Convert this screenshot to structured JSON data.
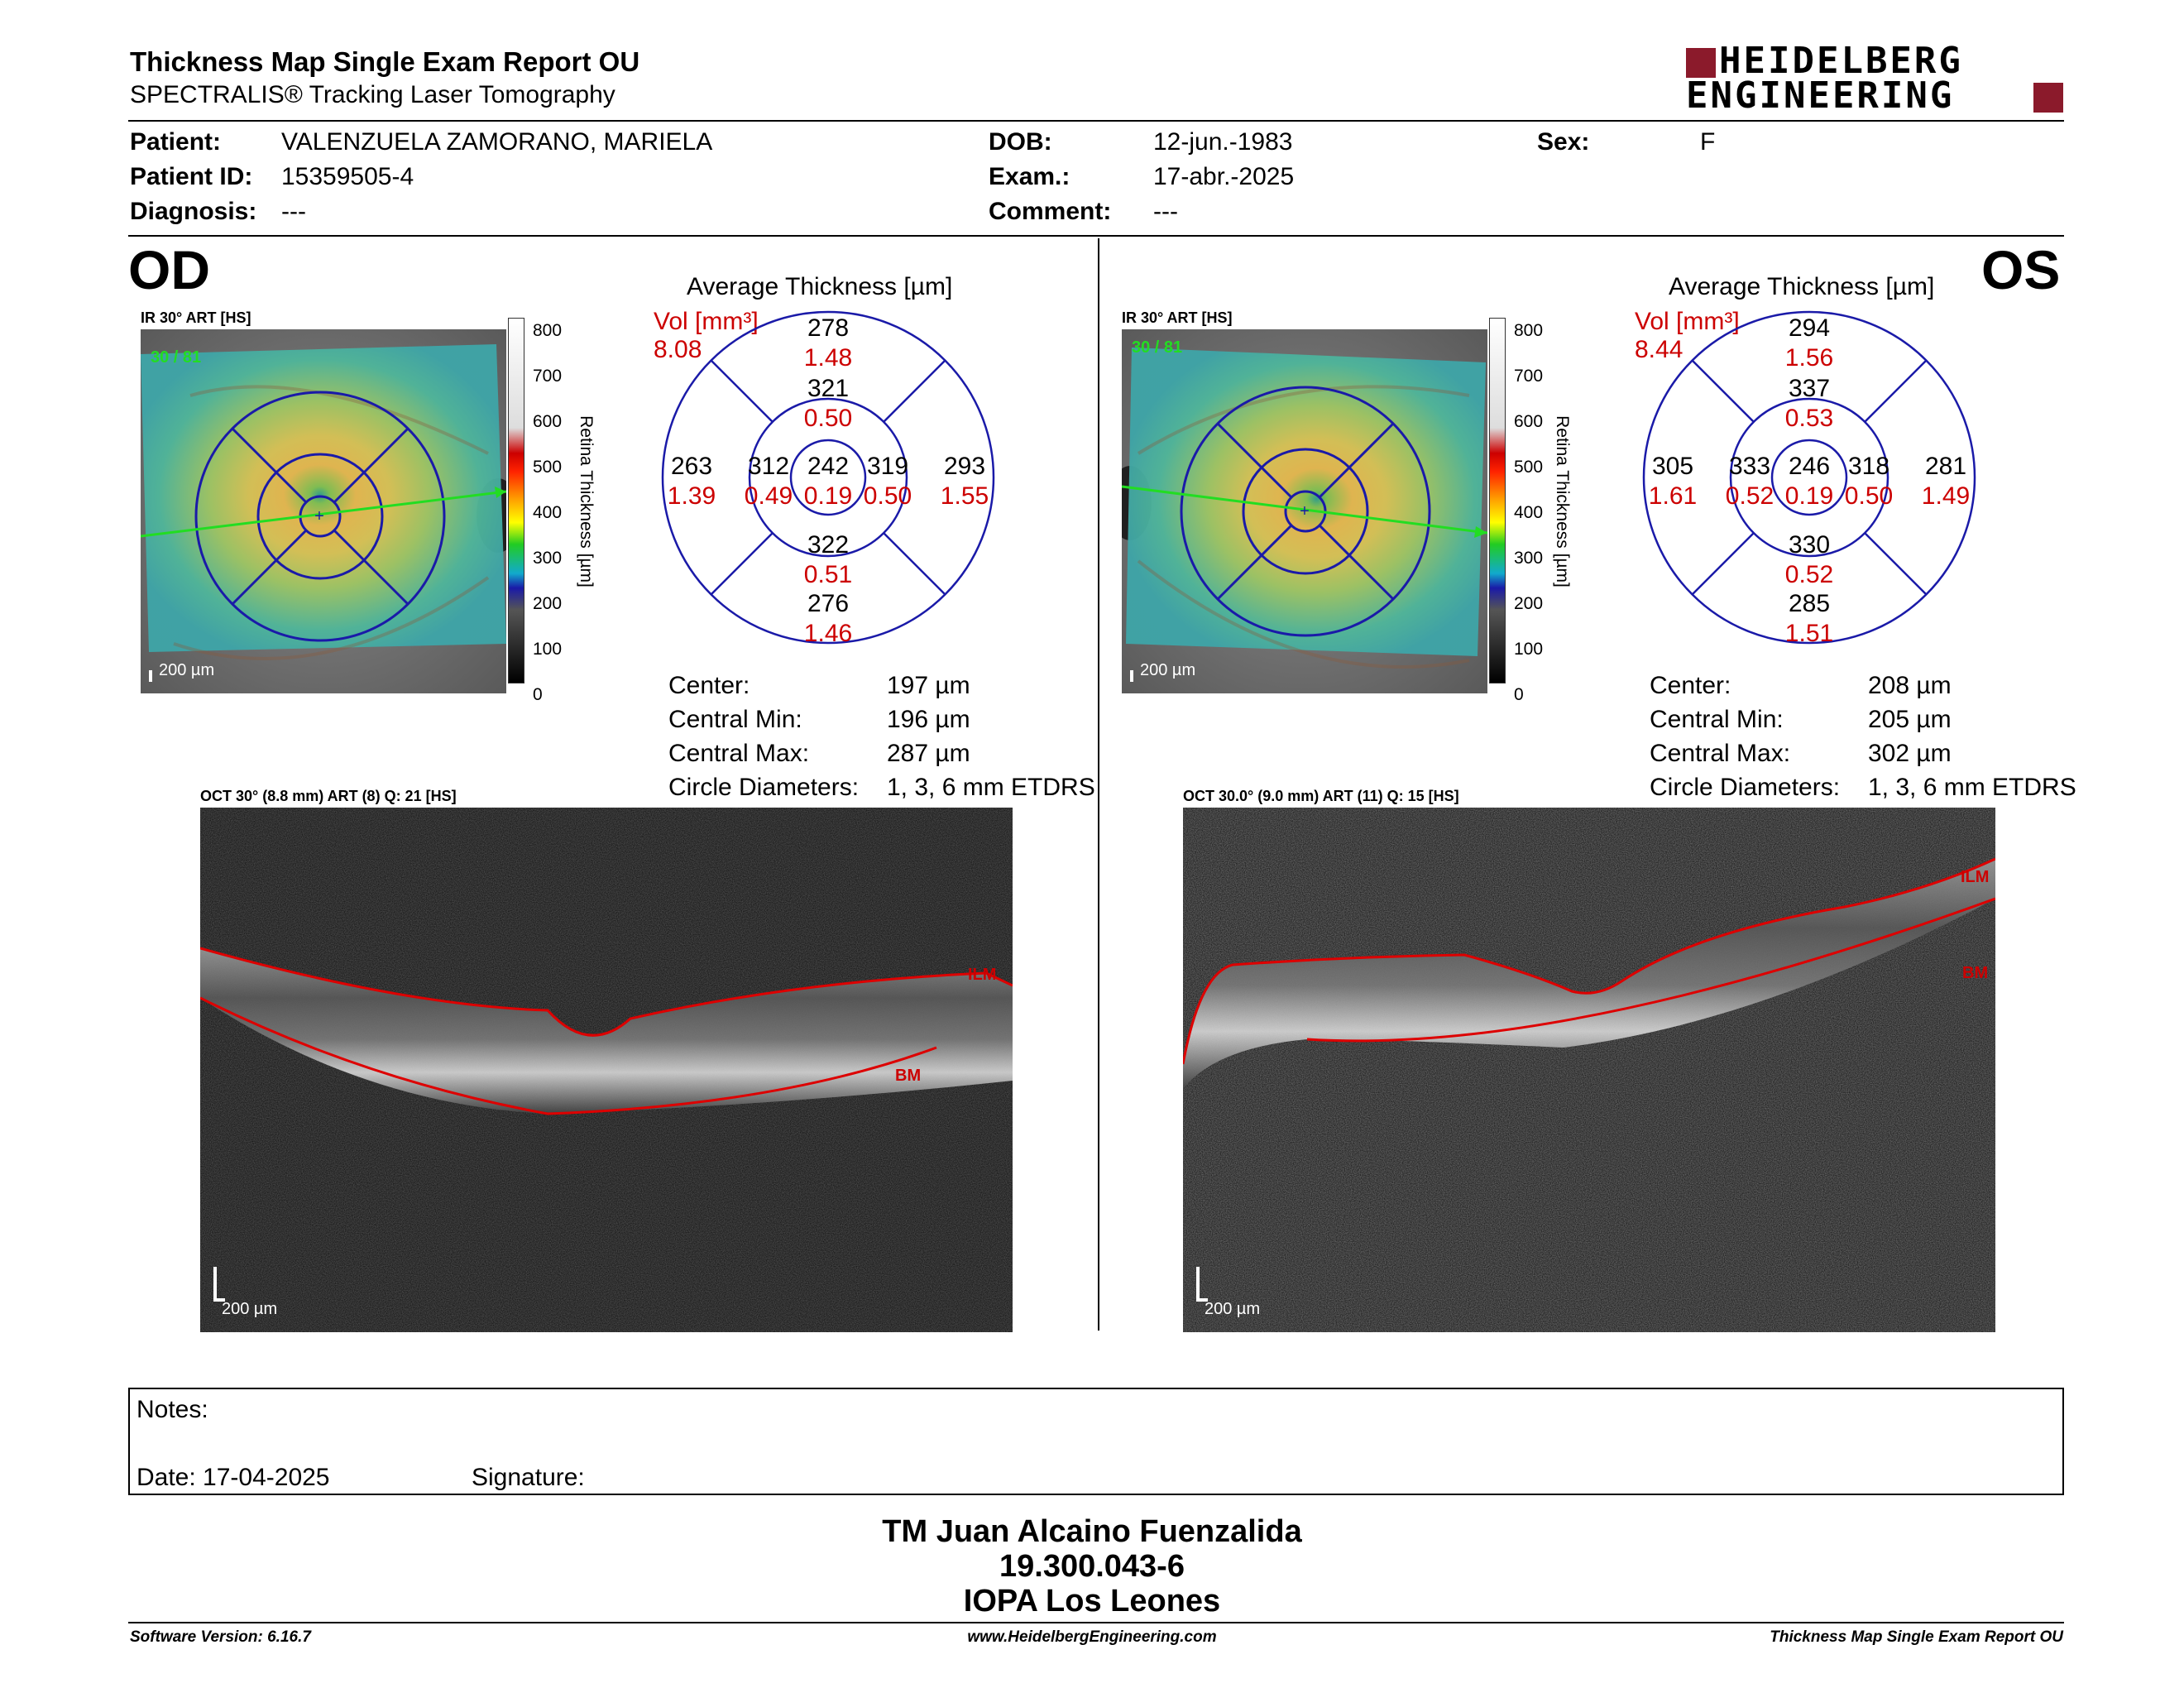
{
  "header": {
    "title": "Thickness Map Single Exam Report OU",
    "subtitle": "SPECTRALIS® Tracking Laser Tomography",
    "logo_line1": "HEIDELBERG",
    "logo_line2": "ENGINEERING"
  },
  "patient": {
    "patient_label": "Patient:",
    "patient_value": "VALENZUELA ZAMORANO, MARIELA",
    "patient_id_label": "Patient ID:",
    "patient_id_value": "15359505-4",
    "diagnosis_label": "Diagnosis:",
    "diagnosis_value": "---",
    "dob_label": "DOB:",
    "dob_value": "12-jun.-1983",
    "exam_label": "Exam.:",
    "exam_value": "17-abr.-2025",
    "comment_label": "Comment:",
    "comment_value": "---",
    "sex_label": "Sex:",
    "sex_value": "F"
  },
  "od": {
    "eye_label": "OD",
    "ir_label": "IR 30° ART [HS]",
    "ir_overlay": "30 / 81",
    "ir_scale": "200 µm",
    "colorbar_ticks": [
      "800",
      "700",
      "600",
      "500",
      "400",
      "300",
      "200",
      "100",
      "0"
    ],
    "colorbar_title": "Retina Thickness [µm]",
    "avg_title": "Average Thickness [µm]",
    "vol_label": "Vol [mm³]",
    "vol_value": "8.08",
    "etdrs": {
      "center": {
        "t": "242",
        "v": "0.19"
      },
      "inner_sup": {
        "t": "321",
        "v": "0.50"
      },
      "inner_inf": {
        "t": "322",
        "v": "0.51"
      },
      "inner_left": {
        "t": "312",
        "v": "0.49"
      },
      "inner_right": {
        "t": "319",
        "v": "0.50"
      },
      "outer_sup": {
        "t": "278",
        "v": "1.48"
      },
      "outer_inf": {
        "t": "276",
        "v": "1.46"
      },
      "outer_left": {
        "t": "263",
        "v": "1.39"
      },
      "outer_right": {
        "t": "293",
        "v": "1.55"
      }
    },
    "stats": [
      {
        "label": "Center:",
        "value": "197 µm"
      },
      {
        "label": "Central Min:",
        "value": "196 µm"
      },
      {
        "label": "Central Max:",
        "value": "287 µm"
      },
      {
        "label": "Circle Diameters:",
        "value": "1, 3, 6 mm ETDRS"
      }
    ],
    "oct_label": "OCT 30° (8.8 mm) ART (8) Q: 21 [HS]",
    "oct_ilm": "ILM",
    "oct_bm": "BM",
    "oct_scale": "200 µm"
  },
  "os": {
    "eye_label": "OS",
    "ir_label": "IR 30° ART [HS]",
    "ir_overlay": "30 / 81",
    "ir_scale": "200 µm",
    "colorbar_ticks": [
      "800",
      "700",
      "600",
      "500",
      "400",
      "300",
      "200",
      "100",
      "0"
    ],
    "colorbar_title": "Retina Thickness [µm]",
    "avg_title": "Average Thickness [µm]",
    "vol_label": "Vol [mm³]",
    "vol_value": "8.44",
    "etdrs": {
      "center": {
        "t": "246",
        "v": "0.19"
      },
      "inner_sup": {
        "t": "337",
        "v": "0.53"
      },
      "inner_inf": {
        "t": "330",
        "v": "0.52"
      },
      "inner_left": {
        "t": "333",
        "v": "0.52"
      },
      "inner_right": {
        "t": "318",
        "v": "0.50"
      },
      "outer_sup": {
        "t": "294",
        "v": "1.56"
      },
      "outer_inf": {
        "t": "285",
        "v": "1.51"
      },
      "outer_left": {
        "t": "305",
        "v": "1.61"
      },
      "outer_right": {
        "t": "281",
        "v": "1.49"
      }
    },
    "stats": [
      {
        "label": "Center:",
        "value": "208 µm"
      },
      {
        "label": "Central Min:",
        "value": "205 µm"
      },
      {
        "label": "Central Max:",
        "value": "302 µm"
      },
      {
        "label": "Circle Diameters:",
        "value": "1, 3, 6 mm ETDRS"
      }
    ],
    "oct_label": "OCT 30.0° (9.0 mm) ART (11) Q: 15 [HS]",
    "oct_ilm": "ILM",
    "oct_bm": "BM",
    "oct_scale": "200 µm"
  },
  "notes": {
    "notes_label": "Notes:",
    "date_label": "Date: 17-04-2025",
    "signature_label": "Signature:"
  },
  "signatory": {
    "name": "TM Juan Alcaino Fuenzalida",
    "id": "19.300.043-6",
    "org": "IOPA Los Leones"
  },
  "footer": {
    "software": "Software Version: 6.16.7",
    "url": "www.HeidelbergEngineering.com",
    "report": "Thickness Map Single Exam Report OU"
  },
  "colors": {
    "accent_red": "#cc0000",
    "logo_red": "#8b1a2b",
    "etdrs_blue": "#1a1aa8",
    "scan_green": "#22dd22"
  }
}
